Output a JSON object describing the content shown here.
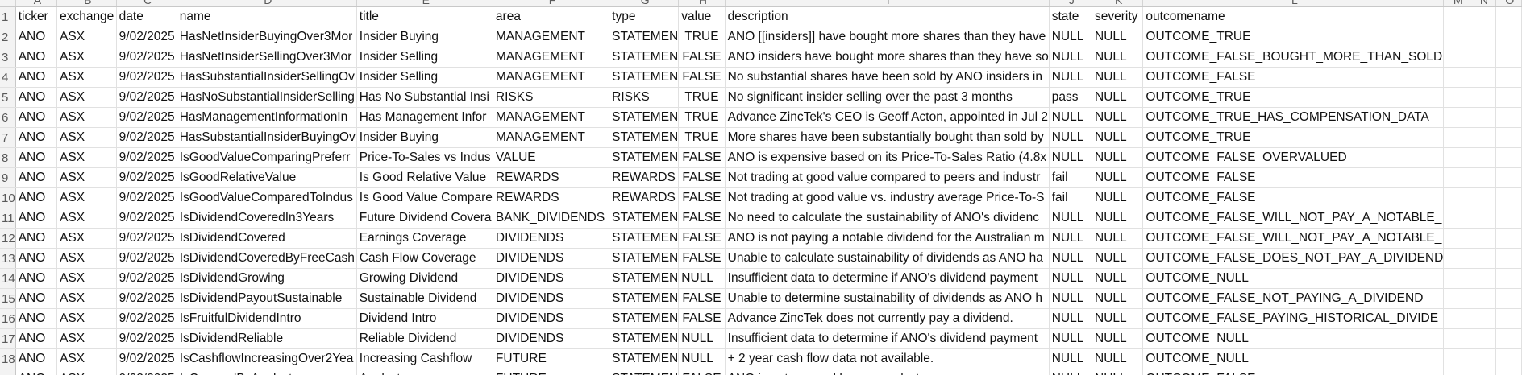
{
  "columns": [
    "",
    "A",
    "B",
    "C",
    "D",
    "E",
    "F",
    "G",
    "H",
    "I",
    "J",
    "K",
    "L",
    "M",
    "N",
    "O"
  ],
  "rows": [
    {
      "n": "1",
      "ticker": "ticker",
      "exchange": "exchange",
      "date": "date",
      "name": "name",
      "title": "title",
      "area": "area",
      "type": "type",
      "value": "value",
      "description": "description",
      "state": "state",
      "severity": "severity",
      "outcomename": "outcomename"
    },
    {
      "n": "2",
      "ticker": "ANO",
      "exchange": "ASX",
      "date": "9/02/2025",
      "name": "HasNetInsiderBuyingOver3Mor",
      "title": "Insider Buying",
      "area": "MANAGEMENT",
      "type": "STATEMEN",
      "value": "TRUE",
      "description": "ANO [[insiders]] have bought more shares than they have",
      "state": "NULL",
      "severity": "NULL",
      "outcomename": "OUTCOME_TRUE"
    },
    {
      "n": "3",
      "ticker": "ANO",
      "exchange": "ASX",
      "date": "9/02/2025",
      "name": "HasNetInsiderSellingOver3Mor",
      "title": "Insider Selling",
      "area": "MANAGEMENT",
      "type": "STATEMEN",
      "value": "FALSE",
      "description": "ANO insiders have bought more shares than they have so",
      "state": "NULL",
      "severity": "NULL",
      "outcomename": "OUTCOME_FALSE_BOUGHT_MORE_THAN_SOLD"
    },
    {
      "n": "4",
      "ticker": "ANO",
      "exchange": "ASX",
      "date": "9/02/2025",
      "name": "HasSubstantialInsiderSellingOv",
      "title": "Insider Selling",
      "area": "MANAGEMENT",
      "type": "STATEMEN",
      "value": "FALSE",
      "description": "No substantial shares have been sold by ANO insiders in",
      "state": "NULL",
      "severity": "NULL",
      "outcomename": "OUTCOME_FALSE"
    },
    {
      "n": "5",
      "ticker": "ANO",
      "exchange": "ASX",
      "date": "9/02/2025",
      "name": "HasNoSubstantialInsiderSelling",
      "title": "Has No Substantial Insi",
      "area": "RISKS",
      "type": "RISKS",
      "value": "TRUE",
      "description": "No significant insider selling over the past 3 months",
      "state": "pass",
      "severity": "NULL",
      "outcomename": "OUTCOME_TRUE"
    },
    {
      "n": "6",
      "ticker": "ANO",
      "exchange": "ASX",
      "date": "9/02/2025",
      "name": "HasManagementInformationIn",
      "title": "Has Management Infor",
      "area": "MANAGEMENT",
      "type": "STATEMEN",
      "value": "TRUE",
      "description": "Advance ZincTek's CEO is Geoff Acton, appointed in Jul 2",
      "state": "NULL",
      "severity": "NULL",
      "outcomename": "OUTCOME_TRUE_HAS_COMPENSATION_DATA"
    },
    {
      "n": "7",
      "ticker": "ANO",
      "exchange": "ASX",
      "date": "9/02/2025",
      "name": "HasSubstantialInsiderBuyingOv",
      "title": "Insider Buying",
      "area": "MANAGEMENT",
      "type": "STATEMEN",
      "value": "TRUE",
      "description": "More shares have been substantially bought than sold by",
      "state": "NULL",
      "severity": "NULL",
      "outcomename": "OUTCOME_TRUE"
    },
    {
      "n": "8",
      "ticker": "ANO",
      "exchange": "ASX",
      "date": "9/02/2025",
      "name": "IsGoodValueComparingPreferr",
      "title": "Price-To-Sales vs Indus",
      "area": "VALUE",
      "type": "STATEMEN",
      "value": "FALSE",
      "description": "ANO is expensive based on its Price-To-Sales Ratio (4.8x",
      "state": "NULL",
      "severity": "NULL",
      "outcomename": "OUTCOME_FALSE_OVERVALUED"
    },
    {
      "n": "9",
      "ticker": "ANO",
      "exchange": "ASX",
      "date": "9/02/2025",
      "name": "IsGoodRelativeValue",
      "title": "Is Good Relative Value",
      "area": "REWARDS",
      "type": "REWARDS",
      "value": "FALSE",
      "description": "Not trading at good value compared to peers and industr",
      "state": "fail",
      "severity": "NULL",
      "outcomename": "OUTCOME_FALSE"
    },
    {
      "n": "10",
      "ticker": "ANO",
      "exchange": "ASX",
      "date": "9/02/2025",
      "name": "IsGoodValueComparedToIndus",
      "title": "Is Good Value Compare",
      "area": "REWARDS",
      "type": "REWARDS",
      "value": "FALSE",
      "description": "Not trading at good value vs. industry average Price-To-S",
      "state": "fail",
      "severity": "NULL",
      "outcomename": "OUTCOME_FALSE"
    },
    {
      "n": "11",
      "ticker": "ANO",
      "exchange": "ASX",
      "date": "9/02/2025",
      "name": "IsDividendCoveredIn3Years",
      "title": "Future Dividend Covera",
      "area": "BANK_DIVIDENDS",
      "type": "STATEMEN",
      "value": "FALSE",
      "description": "No need to calculate the sustainability of ANO's dividenc",
      "state": "NULL",
      "severity": "NULL",
      "outcomename": "OUTCOME_FALSE_WILL_NOT_PAY_A_NOTABLE_"
    },
    {
      "n": "12",
      "ticker": "ANO",
      "exchange": "ASX",
      "date": "9/02/2025",
      "name": "IsDividendCovered",
      "title": "Earnings Coverage",
      "area": "DIVIDENDS",
      "type": "STATEMEN",
      "value": "FALSE",
      "description": "ANO is not paying a notable dividend for the Australian m",
      "state": "NULL",
      "severity": "NULL",
      "outcomename": "OUTCOME_FALSE_WILL_NOT_PAY_A_NOTABLE_"
    },
    {
      "n": "13",
      "ticker": "ANO",
      "exchange": "ASX",
      "date": "9/02/2025",
      "name": "IsDividendCoveredByFreeCash",
      "title": "Cash Flow Coverage",
      "area": "DIVIDENDS",
      "type": "STATEMEN",
      "value": "FALSE",
      "description": "Unable to calculate sustainability of dividends as ANO ha",
      "state": "NULL",
      "severity": "NULL",
      "outcomename": "OUTCOME_FALSE_DOES_NOT_PAY_A_DIVIDEND"
    },
    {
      "n": "14",
      "ticker": "ANO",
      "exchange": "ASX",
      "date": "9/02/2025",
      "name": "IsDividendGrowing",
      "title": "Growing Dividend",
      "area": "DIVIDENDS",
      "type": "STATEMEN",
      "value": "NULL",
      "description": "Insufficient data to determine if ANO's dividend payment",
      "state": "NULL",
      "severity": "NULL",
      "outcomename": "OUTCOME_NULL"
    },
    {
      "n": "15",
      "ticker": "ANO",
      "exchange": "ASX",
      "date": "9/02/2025",
      "name": "IsDividendPayoutSustainable",
      "title": "Sustainable Dividend",
      "area": "DIVIDENDS",
      "type": "STATEMEN",
      "value": "FALSE",
      "description": "Unable to determine sustainability of dividends as ANO h",
      "state": "NULL",
      "severity": "NULL",
      "outcomename": "OUTCOME_FALSE_NOT_PAYING_A_DIVIDEND"
    },
    {
      "n": "16",
      "ticker": "ANO",
      "exchange": "ASX",
      "date": "9/02/2025",
      "name": "IsFruitfulDividendIntro",
      "title": "Dividend Intro",
      "area": "DIVIDENDS",
      "type": "STATEMEN",
      "value": "FALSE",
      "description": "Advance ZincTek does not currently pay a dividend.",
      "state": "NULL",
      "severity": "NULL",
      "outcomename": "OUTCOME_FALSE_PAYING_HISTORICAL_DIVIDE"
    },
    {
      "n": "17",
      "ticker": "ANO",
      "exchange": "ASX",
      "date": "9/02/2025",
      "name": "IsDividendReliable",
      "title": "Reliable Dividend",
      "area": "DIVIDENDS",
      "type": "STATEMEN",
      "value": "NULL",
      "description": "Insufficient data to determine if ANO's dividend payment",
      "state": "NULL",
      "severity": "NULL",
      "outcomename": "OUTCOME_NULL"
    },
    {
      "n": "18",
      "ticker": "ANO",
      "exchange": "ASX",
      "date": "9/02/2025",
      "name": "IsCashflowIncreasingOver2Yea",
      "title": "Increasing Cashflow",
      "area": "FUTURE",
      "type": "STATEMEN",
      "value": "NULL",
      "description": "+ 2 year cash flow data not available.",
      "state": "NULL",
      "severity": "NULL",
      "outcomename": "OUTCOME_NULL"
    },
    {
      "n": "19",
      "ticker": "ANO",
      "exchange": "ASX",
      "date": "9/02/2025",
      "name": "IsCoveredByAnalysts",
      "title": "Analyst coverage",
      "area": "FUTURE",
      "type": "STATEMEN",
      "value": "FALSE",
      "description": "ANO is not covered by any analysts.",
      "state": "NULL",
      "severity": "NULL",
      "outcomename": "OUTCOME_FALSE"
    }
  ]
}
